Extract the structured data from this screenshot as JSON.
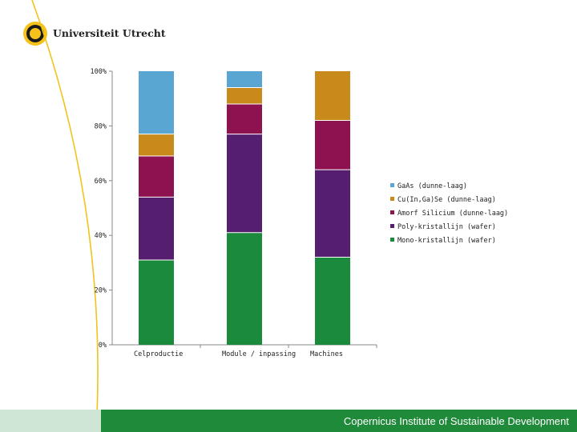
{
  "header": {
    "logo_text": "Universiteit Utrecht"
  },
  "footer": {
    "institute": "Copernicus Institute of Sustainable Development"
  },
  "chart_data": {
    "type": "bar",
    "stacked": true,
    "categories": [
      "Celproductie",
      "Module / inpassing",
      "Machines"
    ],
    "y_ticks": [
      "0%",
      "20%",
      "40%",
      "60%",
      "80%",
      "100%"
    ],
    "ylim": [
      0,
      100
    ],
    "legend_position": "right",
    "series": [
      {
        "name": "Mono-kristallijn (wafer)",
        "color": "#1a8a3c",
        "values": [
          31,
          41,
          32
        ]
      },
      {
        "name": "Poly-kristallijn (wafer)",
        "color": "#561e6e",
        "values": [
          23,
          36,
          32
        ]
      },
      {
        "name": "Amorf Silicium (dunne-laag)",
        "color": "#8e1150",
        "values": [
          15,
          11,
          18
        ]
      },
      {
        "name": "Cu(In,Ga)Se (dunne-laag)",
        "color": "#c88a1a",
        "values": [
          8,
          6,
          18
        ]
      },
      {
        "name": "GaAs (dunne-laag)",
        "color": "#5aa6d2",
        "values": [
          23,
          6,
          0
        ]
      }
    ]
  }
}
